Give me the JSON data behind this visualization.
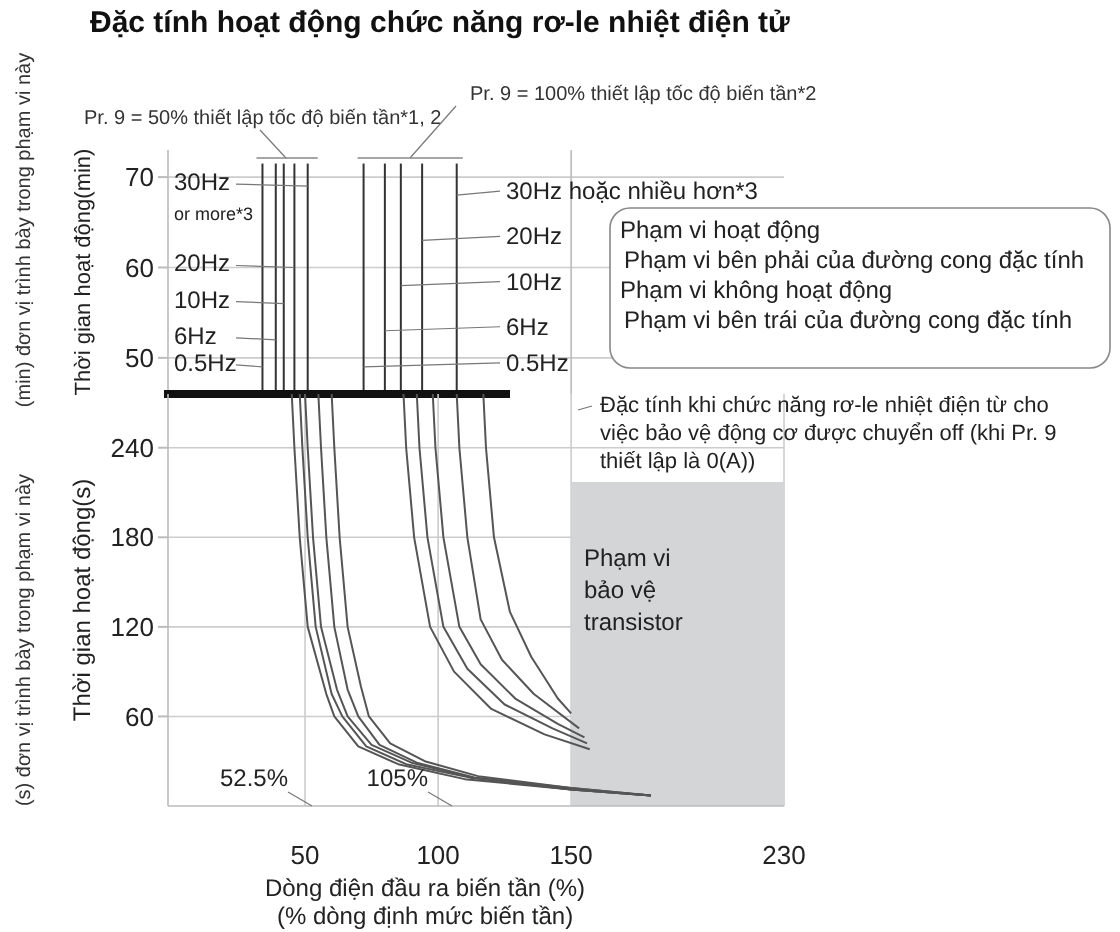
{
  "chart_data": [
    {
      "type": "line",
      "title": "Đặc tính hoạt động chức năng rơ-le nhiệt điện tử",
      "ylabel": "Thời gian hoạt động(min)",
      "xlim": [
        0,
        230
      ],
      "ylim": [
        46,
        73
      ],
      "yticks": [
        50,
        60,
        70
      ],
      "tick_labels": "y",
      "grid": "y",
      "marker": "none",
      "ref_lines": [
        {
          "axis": "x",
          "value": 150,
          "color": "#bbbbbb"
        }
      ],
      "series": [
        {
          "color": "#333333",
          "x": [
            34,
            34
          ],
          "values": [
            46,
            71.5
          ]
        },
        {
          "color": "#333333",
          "x": [
            39,
            39
          ],
          "values": [
            46,
            71.5
          ]
        },
        {
          "color": "#333333",
          "x": [
            42,
            42
          ],
          "values": [
            46,
            71.5
          ]
        },
        {
          "color": "#333333",
          "x": [
            46,
            46
          ],
          "values": [
            46,
            71.5
          ]
        },
        {
          "color": "#333333",
          "x": [
            51,
            51
          ],
          "values": [
            46,
            71.5
          ]
        },
        {
          "color": "#333333",
          "x": [
            72,
            72
          ],
          "values": [
            46,
            71.5
          ]
        },
        {
          "color": "#333333",
          "x": [
            80,
            80
          ],
          "values": [
            46,
            71.5
          ]
        },
        {
          "color": "#333333",
          "x": [
            86,
            86
          ],
          "values": [
            46,
            71.5
          ]
        },
        {
          "color": "#333333",
          "x": [
            94,
            94
          ],
          "values": [
            46,
            71.5
          ]
        },
        {
          "color": "#333333",
          "x": [
            107,
            107
          ],
          "values": [
            46,
            71.5
          ]
        }
      ],
      "annotations": [
        {
          "text": "Pr. 9 = 50% thiết lập tốc độ biến tần*1, 2",
          "x": 43,
          "y": 72.5
        },
        "Pr. 9 = 100% thiết lập tốc độ biến tần*2",
        {
          "text": "30Hz or more*3",
          "x": 51,
          "y": 69
        },
        {
          "text": "20Hz",
          "x": 46,
          "y": 60
        },
        {
          "text": "10Hz",
          "x": 42,
          "y": 56
        },
        {
          "text": "6Hz",
          "x": 39,
          "y": 52
        },
        {
          "text": "0.5Hz",
          "x": 34,
          "y": 49
        },
        {
          "text": "30Hz hoặc nhiều hơn*3",
          "x": 107,
          "y": 68
        },
        {
          "text": "20Hz",
          "x": 94,
          "y": 63
        },
        {
          "text": "10Hz",
          "x": 86,
          "y": 58
        },
        {
          "text": "6Hz",
          "x": 80,
          "y": 53
        },
        {
          "text": "0.5Hz",
          "x": 72,
          "y": 49
        },
        "Phạm vi hoạt động",
        "Phạm vi bên phải của đường cong đặc tính",
        "Phạm vi không hoạt động",
        "Phạm vi bên trái của đường cong đặc tính",
        "(min) đơn vị trình bày trong phạm vi này"
      ]
    },
    {
      "type": "line",
      "xlabel": "Dòng điện đầu ra biến tần  (%)\n(% dòng định mức biến tần)",
      "ylabel": "Thời gian hoạt động(s)",
      "xlim": [
        0,
        230
      ],
      "xticks": [
        50,
        100,
        150,
        230
      ],
      "ylim": [
        0,
        276
      ],
      "yticks": [
        60,
        120,
        180,
        240
      ],
      "grid": true,
      "marker": "none",
      "series": [
        {
          "type": "area",
          "color": "#d4d5d7",
          "x": [
            150,
            230
          ],
          "values": [
            217,
            217
          ]
        },
        {
          "color": "#555555",
          "x": [
            45,
            46,
            48,
            51,
            58,
            61,
            70,
            85,
            110,
            150,
            180
          ],
          "values": [
            276,
            240,
            180,
            120,
            75,
            60,
            40,
            28,
            18,
            11,
            7
          ]
        },
        {
          "color": "#555555",
          "x": [
            48,
            49,
            51,
            54,
            60,
            64,
            73,
            88,
            112,
            150,
            180
          ],
          "values": [
            276,
            240,
            180,
            120,
            75,
            60,
            40,
            28,
            19,
            11,
            7
          ]
        },
        {
          "color": "#555555",
          "x": [
            50,
            51,
            53,
            56,
            62,
            66,
            75,
            90,
            113,
            150,
            180
          ],
          "values": [
            276,
            240,
            180,
            120,
            78,
            60,
            41,
            29,
            19,
            11,
            7
          ]
        },
        {
          "color": "#555555",
          "x": [
            55,
            56,
            58,
            61,
            66,
            70,
            78,
            92,
            114,
            150,
            180
          ],
          "values": [
            276,
            240,
            180,
            120,
            78,
            60,
            41,
            29,
            19,
            12,
            7
          ]
        },
        {
          "color": "#555555",
          "x": [
            60,
            61,
            63,
            66,
            71,
            74,
            82,
            95,
            115,
            150,
            180
          ],
          "values": [
            276,
            240,
            180,
            120,
            80,
            60,
            42,
            30,
            20,
            12,
            7
          ]
        },
        {
          "color": "#555555",
          "x": [
            87,
            88,
            91,
            97,
            106,
            120,
            140,
            157
          ],
          "values": [
            276,
            240,
            180,
            120,
            90,
            65,
            48,
            38
          ]
        },
        {
          "color": "#555555",
          "x": [
            92,
            93,
            96,
            102,
            111,
            125,
            143,
            156
          ],
          "values": [
            276,
            240,
            180,
            120,
            92,
            68,
            52,
            42
          ]
        },
        {
          "color": "#555555",
          "x": [
            98,
            99,
            102,
            108,
            116,
            129,
            145,
            155
          ],
          "values": [
            276,
            240,
            180,
            120,
            95,
            72,
            55,
            46
          ]
        },
        {
          "color": "#555555",
          "x": [
            107,
            108,
            111,
            116,
            124,
            136,
            153
          ],
          "values": [
            276,
            240,
            180,
            125,
            98,
            75,
            52
          ]
        },
        {
          "color": "#555555",
          "x": [
            117,
            118,
            121,
            127,
            135,
            145,
            150
          ],
          "values": [
            276,
            240,
            180,
            130,
            100,
            72,
            62
          ]
        }
      ],
      "annotations": [
        "Đặc tính khi chức năng rơ-le nhiệt điện từ cho việc bảo vệ động cơ được chuyển off (khi Pr. 9 thiết lập là 0(A))",
        "Phạm vi bảo vệ transistor",
        "52.5%",
        "105%",
        "(s) đơn vị trình bày trong phạm vi này"
      ]
    }
  ]
}
